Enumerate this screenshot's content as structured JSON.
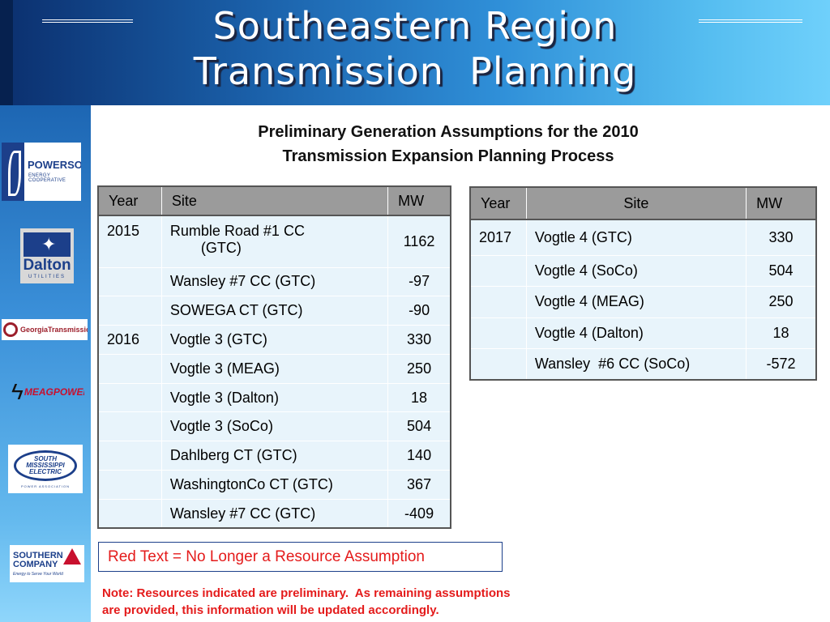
{
  "title": {
    "line1": "Southeastern Region",
    "line2": "Transmission  Planning"
  },
  "subtitle": {
    "line1": "Preliminary Generation Assumptions for the 2010",
    "line2": "Transmission Expansion Planning Process"
  },
  "logos": {
    "powersouth": {
      "name": "POWERSOUTH",
      "sub": "ENERGY COOPERATIVE"
    },
    "dalton": {
      "name": "Dalton",
      "sub": "UTILITIES"
    },
    "georgia": {
      "name": "GeorgiaTransmission"
    },
    "meag": {
      "name": "MEAGPOWER"
    },
    "sme": {
      "name": "SOUTH MISSISSIPPI ELECTRIC",
      "sub": "POWER ASSOCIATION"
    },
    "southern": {
      "line1": "SOUTHERN",
      "line2": "COMPANY",
      "tagline": "Energy to Serve Your World"
    }
  },
  "left_table": {
    "headers": {
      "year": "Year",
      "site": "Site",
      "mw": "MW"
    },
    "row0": {
      "year": "2015",
      "site_main": "Rumble Road #1 CC",
      "site_sub": "(GTC)",
      "mw": "1162"
    },
    "year_2016": "2016",
    "rows": [
      {
        "site": "Wansley #7 CC (GTC)",
        "mw": "-97"
      },
      {
        "site": "SOWEGA CT (GTC)",
        "mw": "-90"
      },
      {
        "site": "Vogtle 3 (GTC)",
        "mw": "330"
      },
      {
        "site": "Vogtle 3 (MEAG)",
        "mw": "250"
      },
      {
        "site": "Vogtle 3 (Dalton)",
        "mw": "18"
      },
      {
        "site": "Vogtle 3 (SoCo)",
        "mw": "504"
      },
      {
        "site": "Dahlberg CT (GTC)",
        "mw": "140"
      },
      {
        "site": "WashingtonCo CT (GTC)",
        "mw": "367"
      },
      {
        "site": "Wansley #7 CC (GTC)",
        "mw": "-409"
      }
    ]
  },
  "right_table": {
    "headers": {
      "year": "Year",
      "site": "Site",
      "mw": "MW"
    },
    "year_2017": "2017",
    "rows": [
      {
        "site": "Vogtle 4 (GTC)",
        "mw": "330"
      },
      {
        "site": "Vogtle 4 (SoCo)",
        "mw": "504"
      },
      {
        "site": "Vogtle 4 (MEAG)",
        "mw": "250"
      },
      {
        "site": "Vogtle 4 (Dalton)",
        "mw": "18"
      },
      {
        "site": "Wansley  #6 CC (SoCo)",
        "mw": "-572"
      }
    ]
  },
  "legend": "Red Text = No Longer a Resource Assumption",
  "note": {
    "line1": "Note: Resources indicated are preliminary.  As remaining assumptions",
    "line2": "are provided, this information will be updated accordingly."
  },
  "colors": {
    "header_dark": "#0b2f6e",
    "header_light": "#6fd0fb",
    "table_header": "#9b9b9b",
    "table_row": "#e8f4fb",
    "legend_red": "#e41b1b"
  }
}
